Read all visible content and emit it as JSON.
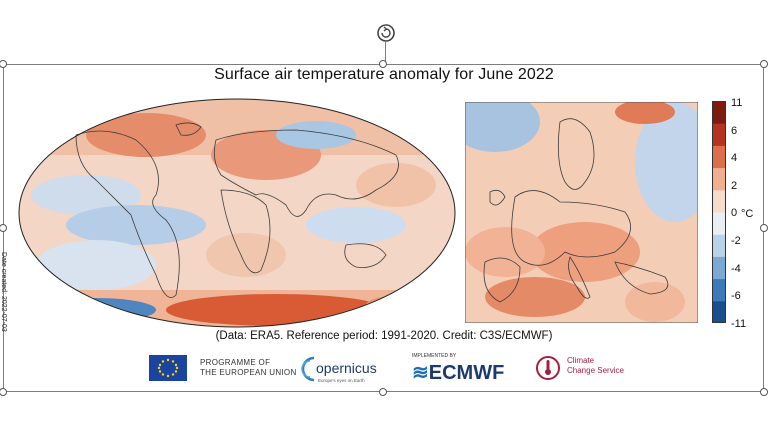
{
  "title": "Surface air temperature anomaly for June 2022",
  "source_line": "(Data: ERA5.  Reference period: 1991-2020.  Credit: C3S/ECMWF)",
  "date_created": "Date created: 2022-07-03",
  "colorbar": {
    "unit": "°C",
    "ticks": [
      "11",
      "6",
      "4",
      "2",
      "0",
      "-2",
      "-4",
      "-6",
      "-11"
    ],
    "colors": [
      "#1a4f8f",
      "#3f7ab8",
      "#7aa9d4",
      "#b9d2e8",
      "#e8eef3",
      "#f6dccd",
      "#f0b08f",
      "#dc6e4a",
      "#b53421",
      "#7f1a10"
    ]
  },
  "logos": {
    "eu_line1": "PROGRAMME OF",
    "eu_line2": "THE EUROPEAN UNION",
    "copernicus": "opernicus",
    "copernicus_sub": "Europe's eyes on Earth",
    "ecmwf_small": "IMPLEMENTED BY",
    "ecmwf": "ECMWF",
    "c3s_line1": "Climate",
    "c3s_line2": "Change Service"
  },
  "icons": {
    "rotate": "rotate-handle-icon"
  }
}
